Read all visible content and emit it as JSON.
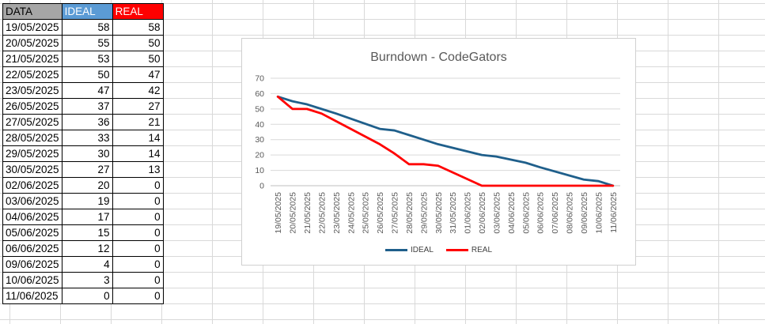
{
  "table": {
    "headers": [
      "DATA",
      "IDEAL",
      "REAL"
    ],
    "rows": [
      [
        "19/05/2025",
        "58",
        "58"
      ],
      [
        "20/05/2025",
        "55",
        "50"
      ],
      [
        "21/05/2025",
        "53",
        "50"
      ],
      [
        "22/05/2025",
        "50",
        "47"
      ],
      [
        "23/05/2025",
        "47",
        "42"
      ],
      [
        "26/05/2025",
        "37",
        "27"
      ],
      [
        "27/05/2025",
        "36",
        "21"
      ],
      [
        "28/05/2025",
        "33",
        "14"
      ],
      [
        "29/05/2025",
        "30",
        "14"
      ],
      [
        "30/05/2025",
        "27",
        "13"
      ],
      [
        "02/06/2025",
        "20",
        "0"
      ],
      [
        "03/06/2025",
        "19",
        "0"
      ],
      [
        "04/06/2025",
        "17",
        "0"
      ],
      [
        "05/06/2025",
        "15",
        "0"
      ],
      [
        "06/06/2025",
        "12",
        "0"
      ],
      [
        "09/06/2025",
        "4",
        "0"
      ],
      [
        "10/06/2025",
        "3",
        "0"
      ],
      [
        "11/06/2025",
        "0",
        "0"
      ]
    ]
  },
  "chart_data": {
    "type": "line",
    "title": "Burndown - CodeGators",
    "xlabel": "",
    "ylabel": "",
    "x": [
      "19/05/2025",
      "20/05/2025",
      "21/05/2025",
      "22/05/2025",
      "23/05/2025",
      "24/05/2025",
      "25/05/2025",
      "26/05/2025",
      "27/05/2025",
      "28/05/2025",
      "29/05/2025",
      "30/05/2025",
      "31/05/2025",
      "01/06/2025",
      "02/06/2025",
      "03/06/2025",
      "04/06/2025",
      "05/06/2025",
      "06/06/2025",
      "07/06/2025",
      "08/06/2025",
      "09/06/2025",
      "10/06/2025",
      "11/06/2025"
    ],
    "series": [
      {
        "name": "IDEAL",
        "color": "#1f5f8b",
        "points": [
          [
            "19/05/2025",
            58
          ],
          [
            "20/05/2025",
            55
          ],
          [
            "21/05/2025",
            53
          ],
          [
            "22/05/2025",
            50
          ],
          [
            "23/05/2025",
            47
          ],
          [
            "26/05/2025",
            37
          ],
          [
            "27/05/2025",
            36
          ],
          [
            "28/05/2025",
            33
          ],
          [
            "29/05/2025",
            30
          ],
          [
            "30/05/2025",
            27
          ],
          [
            "02/06/2025",
            20
          ],
          [
            "03/06/2025",
            19
          ],
          [
            "04/06/2025",
            17
          ],
          [
            "05/06/2025",
            15
          ],
          [
            "06/06/2025",
            12
          ],
          [
            "09/06/2025",
            4
          ],
          [
            "10/06/2025",
            3
          ],
          [
            "11/06/2025",
            0
          ]
        ]
      },
      {
        "name": "REAL",
        "color": "#ff0000",
        "points": [
          [
            "19/05/2025",
            58
          ],
          [
            "20/05/2025",
            50
          ],
          [
            "21/05/2025",
            50
          ],
          [
            "22/05/2025",
            47
          ],
          [
            "23/05/2025",
            42
          ],
          [
            "26/05/2025",
            27
          ],
          [
            "27/05/2025",
            21
          ],
          [
            "28/05/2025",
            14
          ],
          [
            "29/05/2025",
            14
          ],
          [
            "30/05/2025",
            13
          ],
          [
            "02/06/2025",
            0
          ],
          [
            "03/06/2025",
            0
          ],
          [
            "04/06/2025",
            0
          ],
          [
            "05/06/2025",
            0
          ],
          [
            "06/06/2025",
            0
          ],
          [
            "09/06/2025",
            0
          ],
          [
            "10/06/2025",
            0
          ],
          [
            "11/06/2025",
            0
          ]
        ]
      }
    ],
    "ylim": [
      0,
      70
    ],
    "yticks": [
      0,
      10,
      20,
      30,
      40,
      50,
      60,
      70
    ],
    "grid": true,
    "legend": "bottom"
  }
}
